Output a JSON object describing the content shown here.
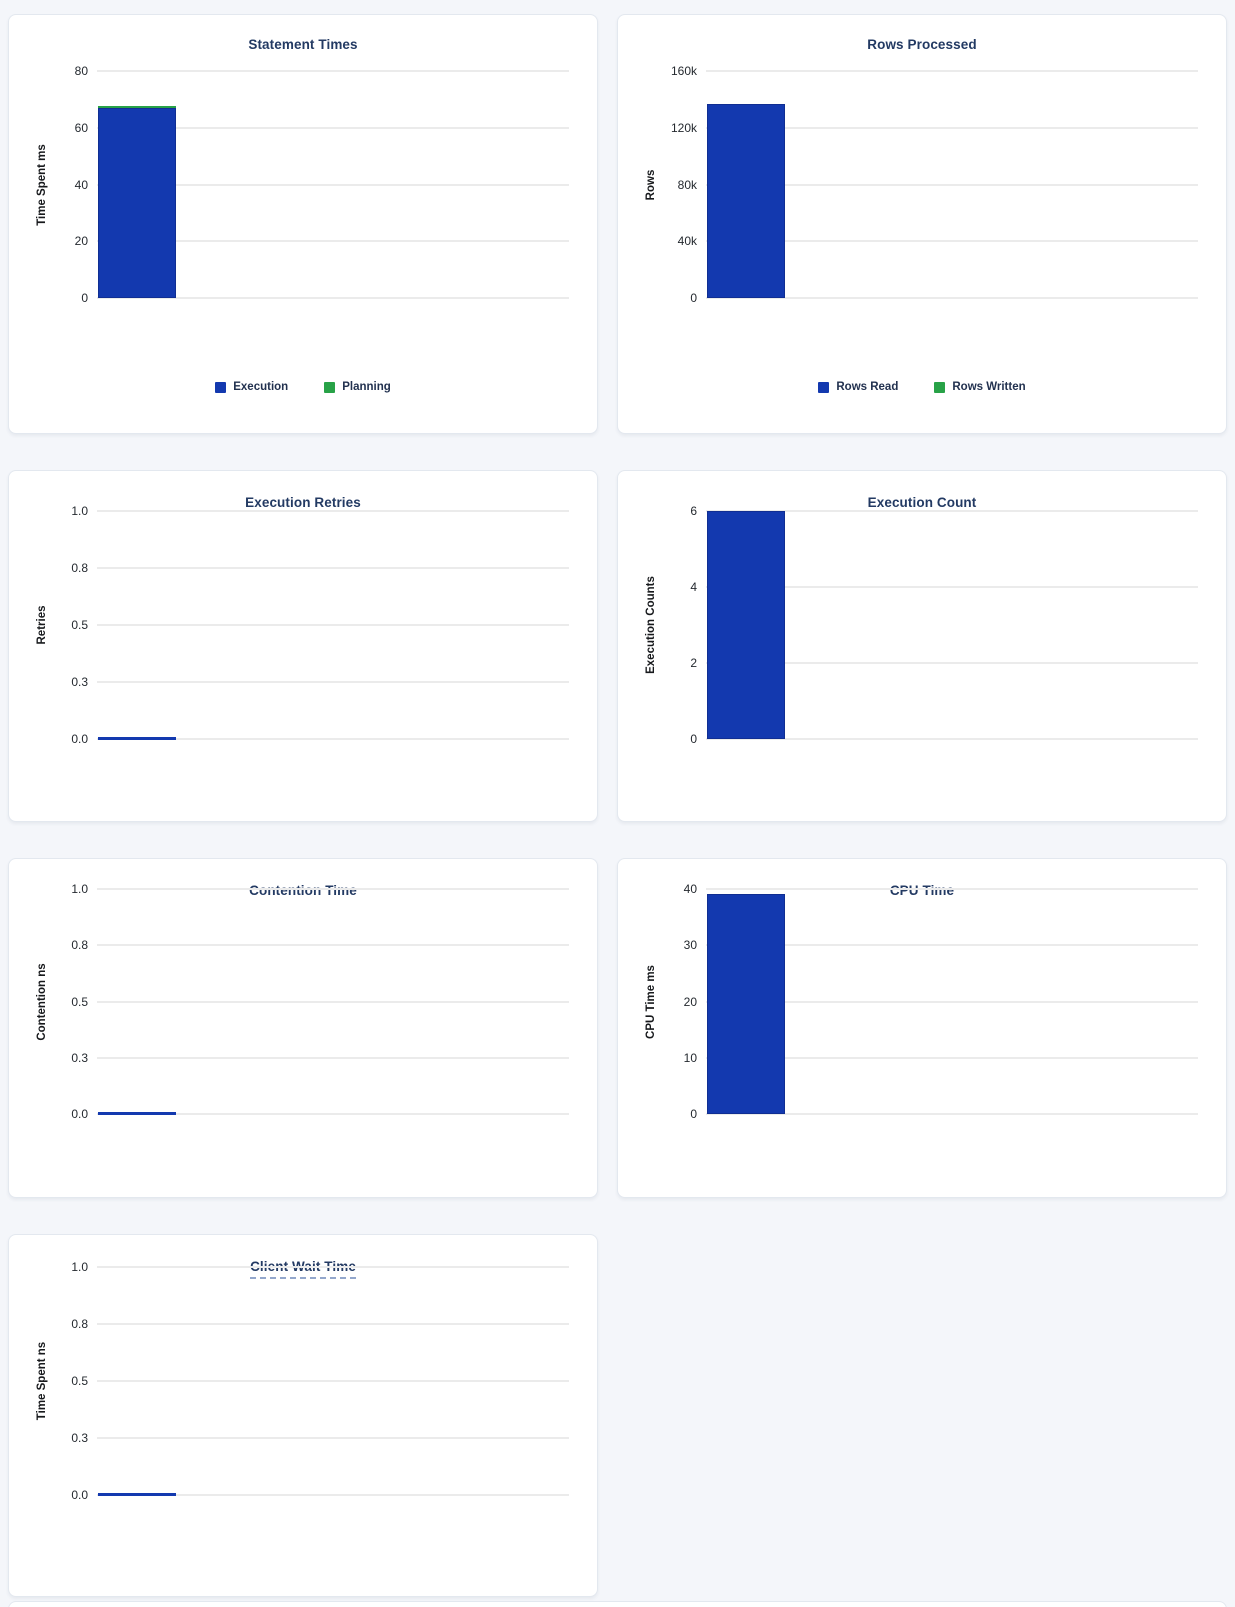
{
  "colors": {
    "blue": "#1339af",
    "green": "#28a247",
    "title_navy": "#233a63",
    "grid": "#ebebeb",
    "page_background": "#f4f6fa"
  },
  "chart_data": [
    {
      "type": "bar",
      "title": "Statement Times",
      "ylabel": "Time Spent ms",
      "ymax": 80,
      "yticks": [
        "0",
        "20",
        "40",
        "60",
        "80"
      ],
      "grid": true,
      "legend_position": "bottom",
      "series": [
        {
          "name": "Execution",
          "color": "blue",
          "value": 67
        },
        {
          "name": "Planning",
          "color": "green",
          "value": 0.8
        }
      ]
    },
    {
      "type": "bar",
      "title": "Rows Processed",
      "ylabel": "Rows",
      "ymax": 160000,
      "yticks": [
        "0",
        "40k",
        "80k",
        "120k",
        "160k"
      ],
      "grid": true,
      "legend_position": "bottom",
      "series": [
        {
          "name": "Rows Read",
          "color": "blue",
          "value": 137000
        },
        {
          "name": "Rows Written",
          "color": "green",
          "value": 0
        }
      ]
    },
    {
      "type": "bar",
      "title": "Execution Retries",
      "ylabel": "Retries",
      "ymax": 1,
      "yticks": [
        "0.0",
        "0.3",
        "0.5",
        "0.8",
        "1.0"
      ],
      "grid": true,
      "legend_position": "none",
      "series": [
        {
          "color": "blue",
          "value": 0
        }
      ]
    },
    {
      "type": "bar",
      "title": "Execution Count",
      "ylabel": "Execution Counts",
      "ymax": 6,
      "yticks": [
        "0",
        "2",
        "4",
        "6"
      ],
      "grid": true,
      "legend_position": "none",
      "series": [
        {
          "color": "blue",
          "value": 6
        }
      ]
    },
    {
      "type": "bar",
      "title": "Contention Time",
      "ylabel": "Contention ns",
      "ymax": 1,
      "yticks": [
        "0.0",
        "0.3",
        "0.5",
        "0.8",
        "1.0"
      ],
      "grid": true,
      "legend_position": "none",
      "series": [
        {
          "color": "blue",
          "value": 0
        }
      ]
    },
    {
      "type": "bar",
      "title": "CPU Time",
      "ylabel": "CPU Time ms",
      "ymax": 40,
      "yticks": [
        "0",
        "10",
        "20",
        "30",
        "40"
      ],
      "grid": true,
      "legend_position": "none",
      "series": [
        {
          "color": "blue",
          "value": 39.2
        }
      ]
    },
    {
      "type": "bar",
      "title": "Client Wait Time",
      "ylabel": "Time Spent ns",
      "ymax": 1,
      "yticks": [
        "0.0",
        "0.3",
        "0.5",
        "0.8",
        "1.0"
      ],
      "grid": true,
      "legend_position": "none",
      "title_style": "dashed-underline",
      "series": [
        {
          "color": "blue",
          "value": 0
        }
      ]
    }
  ]
}
